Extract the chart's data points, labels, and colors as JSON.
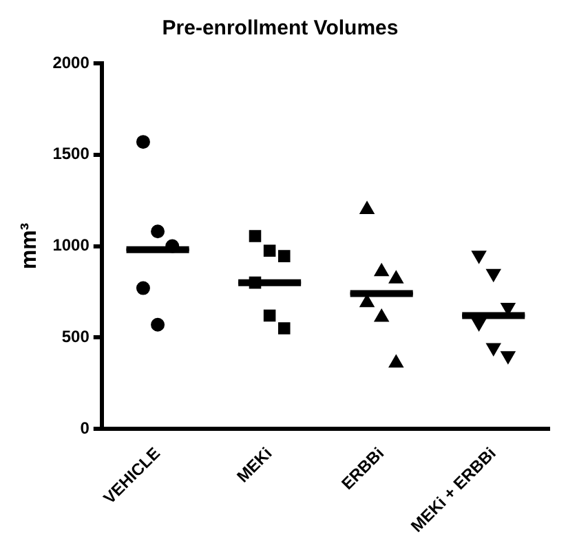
{
  "chart_data": {
    "type": "scatter",
    "title": "Pre-enrollment Volumes",
    "ylabel": "mm³",
    "categories": [
      "VEHICLE",
      "MEKi",
      "ERBBi",
      "MEKi + ERBBi"
    ],
    "ylim": [
      0,
      2000
    ],
    "yticks": [
      0,
      500,
      1000,
      1500,
      2000
    ],
    "grid": false,
    "legend": false,
    "series": [
      {
        "type": "scatter",
        "marker": "circle",
        "color": "#000000",
        "x": [
          "VEHICLE",
          "VEHICLE",
          "VEHICLE",
          "VEHICLE",
          "VEHICLE"
        ],
        "values": [
          1570,
          1080,
          1000,
          770,
          570
        ]
      },
      {
        "type": "scatter",
        "marker": "square",
        "color": "#000000",
        "x": [
          "MEKi",
          "MEKi",
          "MEKi",
          "MEKi",
          "MEKi",
          "MEKi"
        ],
        "values": [
          1055,
          975,
          945,
          800,
          620,
          550
        ]
      },
      {
        "type": "scatter",
        "marker": "triangle",
        "color": "#000000",
        "x": [
          "ERBBi",
          "ERBBi",
          "ERBBi",
          "ERBBi",
          "ERBBi",
          "ERBBi"
        ],
        "values": [
          1200,
          860,
          820,
          690,
          610,
          360
        ]
      },
      {
        "type": "scatter",
        "marker": "triangle-down",
        "color": "#000000",
        "x": [
          "MEKi + ERBBi",
          "MEKi + ERBBi",
          "MEKi + ERBBi",
          "MEKi + ERBBi",
          "MEKi + ERBBi",
          "MEKi + ERBBi"
        ],
        "values": [
          950,
          850,
          665,
          580,
          445,
          400
        ]
      },
      {
        "type": "box",
        "color": "#000000",
        "boxes": [
          {
            "low": 980,
            "q1": 980,
            "median": 980,
            "q3": 980,
            "high": 980
          },
          {
            "low": 800,
            "q1": 800,
            "median": 800,
            "q3": 800,
            "high": 800
          },
          {
            "low": 740,
            "q1": 740,
            "median": 740,
            "q3": 740,
            "high": 740
          },
          {
            "low": 620,
            "q1": 620,
            "median": 620,
            "q3": 620,
            "high": 620
          }
        ]
      }
    ]
  }
}
